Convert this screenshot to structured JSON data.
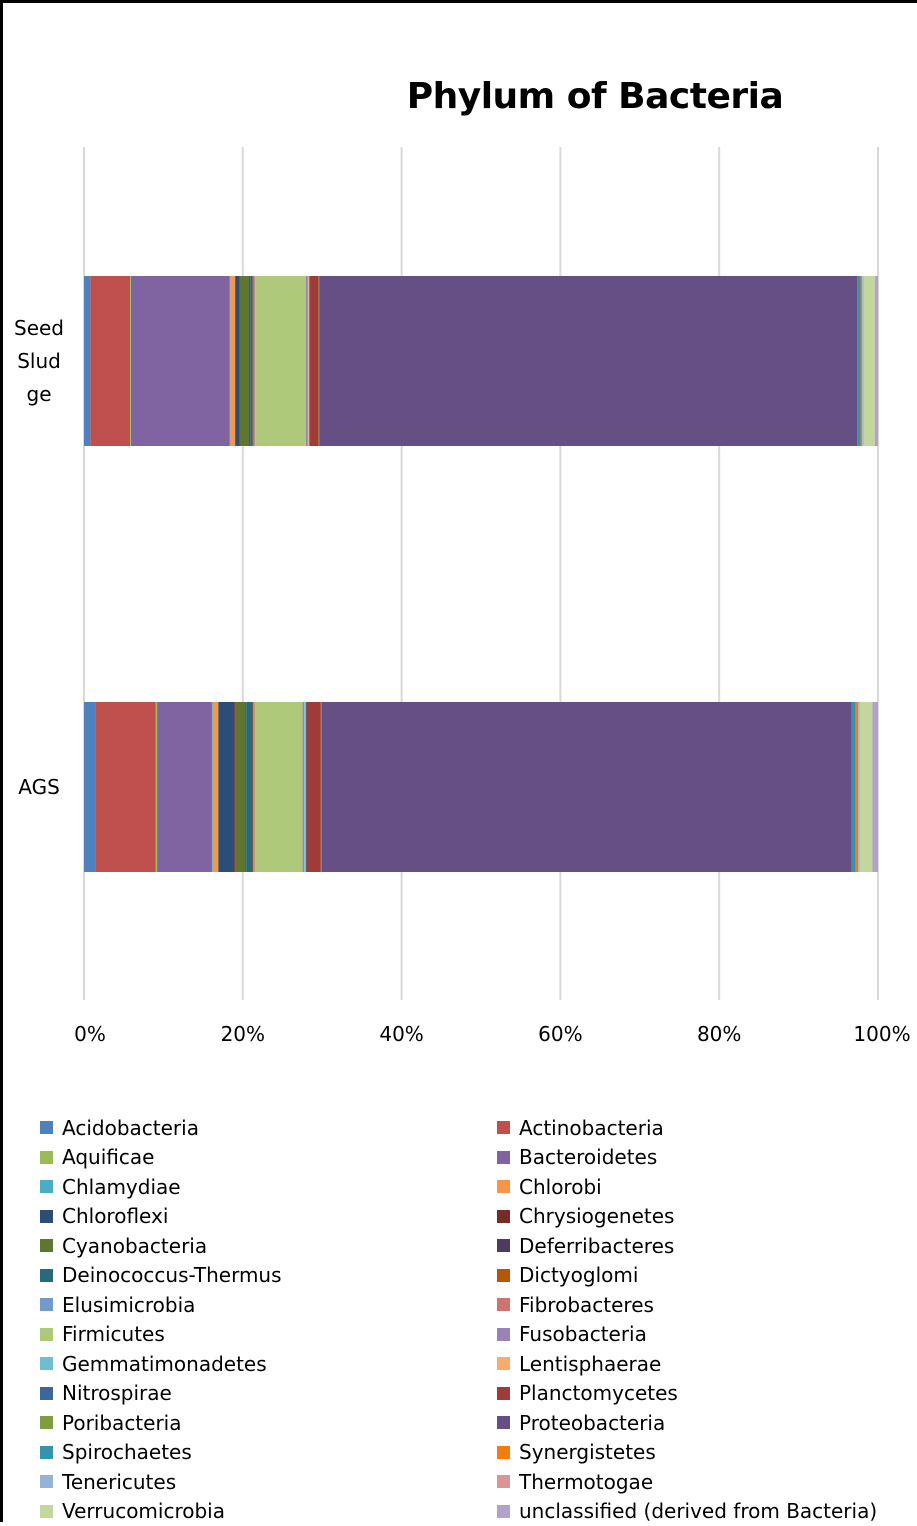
{
  "chart_data": {
    "type": "bar",
    "orientation": "horizontal",
    "stacking": "percent",
    "title": "Phylum of Bacteria",
    "xlabel": "",
    "ylabel": "",
    "xlim": [
      0,
      100
    ],
    "x_ticks": [
      "0%",
      "20%",
      "40%",
      "60%",
      "80%",
      "100%"
    ],
    "grid": true,
    "legend_position": "bottom",
    "categories": [
      "Seed Sludge",
      "AGS"
    ],
    "series": [
      {
        "name": "Acidobacteria",
        "color": "#4F81BD",
        "values": [
          0.8,
          1.5
        ]
      },
      {
        "name": "Actinobacteria",
        "color": "#C0504D",
        "values": [
          5.0,
          7.5
        ]
      },
      {
        "name": "Aquificae",
        "color": "#9BBB59",
        "values": [
          0.1,
          0.2
        ]
      },
      {
        "name": "Bacteroidetes",
        "color": "#8064A2",
        "values": [
          12.4,
          6.9
        ]
      },
      {
        "name": "Chlamydiae",
        "color": "#4BACC6",
        "values": [
          0.1,
          0.1
        ]
      },
      {
        "name": "Chlorobi",
        "color": "#F79646",
        "values": [
          0.6,
          0.7
        ]
      },
      {
        "name": "Chloroflexi",
        "color": "#2C4D75",
        "values": [
          0.5,
          2.0
        ]
      },
      {
        "name": "Chrysiogenetes",
        "color": "#772C2A",
        "values": [
          0.1,
          0.1
        ]
      },
      {
        "name": "Cyanobacteria",
        "color": "#5F7530",
        "values": [
          1.2,
          1.3
        ]
      },
      {
        "name": "Deferribacteres",
        "color": "#4D3B62",
        "values": [
          0.1,
          0.1
        ]
      },
      {
        "name": "Deinococcus-Thermus",
        "color": "#276A7C",
        "values": [
          0.3,
          0.8
        ]
      },
      {
        "name": "Dictyoglomi",
        "color": "#B65708",
        "values": [
          0.1,
          0.1
        ]
      },
      {
        "name": "Elusimicrobia",
        "color": "#729ACA",
        "values": [
          0.1,
          0.1
        ]
      },
      {
        "name": "Fibrobacteres",
        "color": "#CD7371",
        "values": [
          0.1,
          0.1
        ]
      },
      {
        "name": "Firmicutes",
        "color": "#AFC97A",
        "values": [
          6.4,
          6.0
        ]
      },
      {
        "name": "Fusobacteria",
        "color": "#9983B5",
        "values": [
          0.2,
          0.2
        ]
      },
      {
        "name": "Gemmatimonadetes",
        "color": "#6FBDD1",
        "values": [
          0.1,
          0.1
        ]
      },
      {
        "name": "Lentisphaerae",
        "color": "#F9AB6B",
        "values": [
          0.1,
          0.1
        ]
      },
      {
        "name": "Nitrospirae",
        "color": "#3A679C",
        "values": [
          0.1,
          0.1
        ]
      },
      {
        "name": "Planctomycetes",
        "color": "#9F3B38",
        "values": [
          1.1,
          1.8
        ]
      },
      {
        "name": "Poribacteria",
        "color": "#7E9C40",
        "values": [
          0.1,
          0.1
        ]
      },
      {
        "name": "Proteobacteria",
        "color": "#664F84",
        "values": [
          67.6,
          66.7
        ]
      },
      {
        "name": "Spirochaetes",
        "color": "#3494AE",
        "values": [
          0.4,
          0.5
        ]
      },
      {
        "name": "Synergistetes",
        "color": "#F47D0C",
        "values": [
          0.2,
          0.3
        ]
      },
      {
        "name": "Tenericutes",
        "color": "#94B3D7",
        "values": [
          0.1,
          0.1
        ]
      },
      {
        "name": "Thermotogae",
        "color": "#D99694",
        "values": [
          0.1,
          0.1
        ]
      },
      {
        "name": "Verrucomicrobia",
        "color": "#C3D69B",
        "values": [
          1.4,
          1.6
        ]
      },
      {
        "name": "unclassified (derived from Bacteria)",
        "color": "#B3A2C7",
        "values": [
          0.4,
          0.7
        ]
      }
    ]
  }
}
